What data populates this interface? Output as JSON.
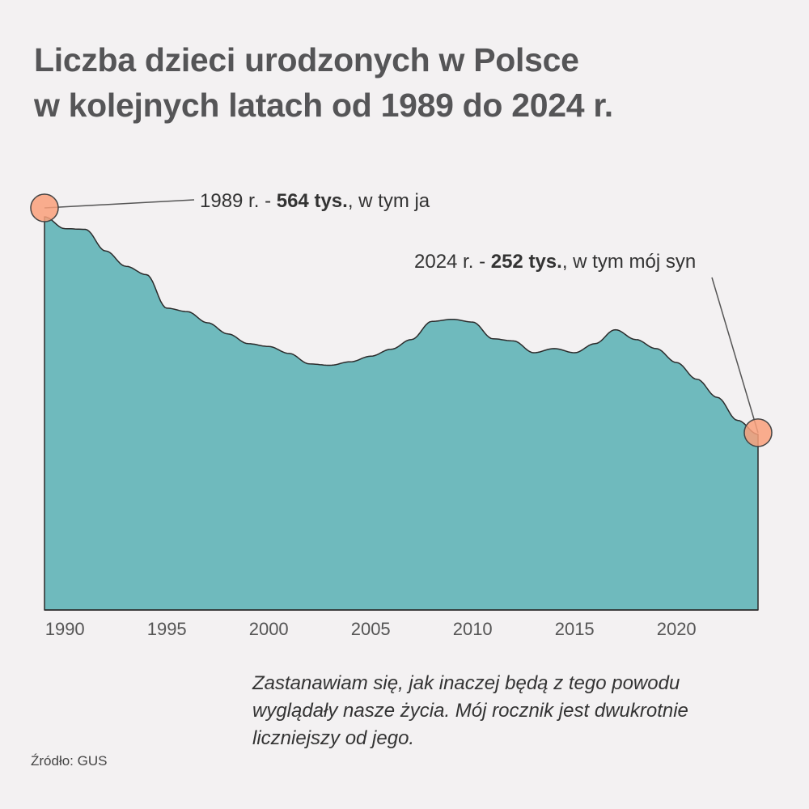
{
  "title_lines": [
    "Liczba dzieci urodzonych w Polsce",
    "w kolejnych latach od 1989 do 2024 r."
  ],
  "annotations": {
    "first": {
      "prefix": "1989 r. - ",
      "value": "564 tys.",
      "suffix": ", w tym ja"
    },
    "last": {
      "prefix": "2024 r. - ",
      "value": "252 tys.",
      "suffix": ", w tym mój syn"
    }
  },
  "note": "Zastanawiam się, jak inaczej będą z tego powodu wyglądały nasze życia. Mój rocznik jest dwukrotnie liczniejszy od jego.",
  "source": "Źródło: GUS",
  "colors": {
    "area_fill": "#6fbabd",
    "area_stroke": "#2b2b2b",
    "marker_fill": "#f9a07b",
    "background": "#f3f1f2"
  },
  "chart_data": {
    "type": "area",
    "x": [
      1989,
      1990,
      1991,
      1992,
      1993,
      1994,
      1995,
      1996,
      1997,
      1998,
      1999,
      2000,
      2001,
      2002,
      2003,
      2004,
      2005,
      2006,
      2007,
      2008,
      2009,
      2010,
      2011,
      2012,
      2013,
      2014,
      2015,
      2016,
      2017,
      2018,
      2019,
      2020,
      2021,
      2022,
      2023,
      2024
    ],
    "series": [
      {
        "values": [
          564,
          547,
          546,
          515,
          493,
          481,
          433,
          428,
          412,
          396,
          382,
          378,
          368,
          353,
          351,
          356,
          364,
          374,
          388,
          414,
          417,
          413,
          389,
          386,
          369,
          375,
          369,
          382,
          402,
          388,
          375,
          355,
          331,
          305,
          272,
          252
        ]
      }
    ],
    "unit": "tys.",
    "xlim": [
      1989,
      2024
    ],
    "ylim": [
      0,
      564
    ],
    "x_ticks": [
      1990,
      1995,
      2000,
      2005,
      2010,
      2015,
      2020
    ],
    "highlighted": [
      1989,
      2024
    ],
    "grid": false,
    "y_axis_shown": false
  }
}
